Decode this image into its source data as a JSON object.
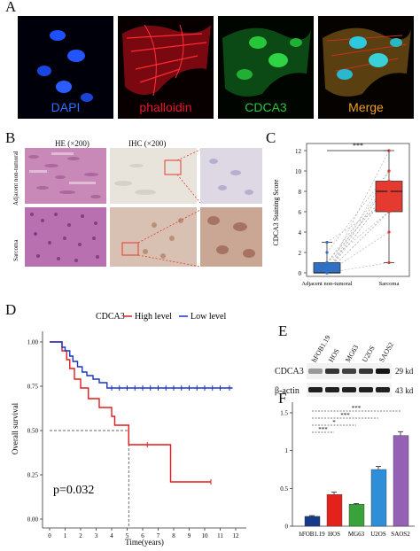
{
  "panel_labels": {
    "a": "A",
    "b": "B",
    "c": "C",
    "d": "D",
    "e": "E",
    "f": "F"
  },
  "panel_a": {
    "dapi": "DAPI",
    "phalloidin": "phalloidin",
    "cdca3": "CDCA3",
    "merge": "Merge",
    "colors": {
      "dapi": "#2e6fff",
      "phalloidin": "#e8142a",
      "cdca3": "#27c63a",
      "merge": "#f0a020"
    }
  },
  "panel_b": {
    "he": "HE (×200)",
    "ihc": "IHC (×200)",
    "row_top": "Adjacent non-tumoral",
    "row_bottom": "Sarcoma"
  },
  "panel_e": {
    "lanes": [
      "hFOB1.19",
      "HOS",
      "MG63",
      "U2OS",
      "SAOS2"
    ],
    "rows": [
      {
        "name": "CDCA3",
        "kd": "29 kd",
        "levels": [
          0.35,
          0.8,
          0.75,
          0.8,
          0.95
        ]
      },
      {
        "name": "β-actin",
        "kd": "43 kd",
        "levels": [
          0.9,
          0.9,
          0.9,
          0.9,
          0.9
        ]
      }
    ]
  },
  "chart_data": [
    {
      "type": "scatter",
      "panel": "C",
      "ylabel": "CDCA3 Staining Score",
      "categories": [
        "Adjacent non-tumoral",
        "Sarcoma"
      ],
      "ylim": [
        0,
        12
      ],
      "yticks": [
        0,
        2,
        4,
        6,
        8,
        10,
        12
      ],
      "significance": "***",
      "box": [
        {
          "name": "Adjacent non-tumoral",
          "q1": 0,
          "median": 0,
          "q3": 1,
          "whisker_low": 0,
          "whisker_high": 3,
          "color": "#2f6fc4"
        },
        {
          "name": "Sarcoma",
          "q1": 6,
          "median": 8,
          "q3": 9,
          "whisker_low": 1,
          "whisker_high": 12,
          "color": "#e53a2f"
        }
      ],
      "paired_points": [
        [
          0,
          8
        ],
        [
          0,
          9
        ],
        [
          1,
          6
        ],
        [
          0,
          12
        ],
        [
          2,
          10
        ],
        [
          0,
          4
        ],
        [
          1,
          8
        ],
        [
          0,
          6
        ],
        [
          0,
          9
        ],
        [
          3,
          7
        ],
        [
          0,
          1
        ],
        [
          1,
          8
        ],
        [
          0,
          10
        ],
        [
          0,
          6
        ],
        [
          0,
          8
        ],
        [
          1,
          9
        ]
      ]
    },
    {
      "type": "line",
      "panel": "D",
      "xlabel": "Time(years)",
      "ylabel": "Overall survival",
      "xlim": [
        0,
        12
      ],
      "ylim": [
        0,
        1
      ],
      "xticks": [
        0,
        1,
        2,
        3,
        4,
        5,
        6,
        7,
        8,
        9,
        10,
        11,
        12
      ],
      "yticks": [
        0,
        0.25,
        0.5,
        0.75,
        1
      ],
      "legend_title": "CDCA3",
      "pvalue": "p=0.032",
      "median_survival_x": 5.1,
      "series": [
        {
          "name": "High level",
          "color": "#e41a1c",
          "steps": [
            [
              0,
              1
            ],
            [
              0.8,
              0.95
            ],
            [
              1.1,
              0.9
            ],
            [
              1.3,
              0.85
            ],
            [
              1.6,
              0.79
            ],
            [
              2.0,
              0.74
            ],
            [
              2.5,
              0.68
            ],
            [
              3.2,
              0.63
            ],
            [
              4.0,
              0.58
            ],
            [
              4.2,
              0.53
            ],
            [
              5.1,
              0.42
            ],
            [
              7.8,
              0.21
            ],
            [
              10.4,
              0.21
            ]
          ],
          "censors": [
            [
              6.3,
              0.42
            ],
            [
              10.4,
              0.21
            ]
          ]
        },
        {
          "name": "Low level",
          "color": "#1a33c9",
          "steps": [
            [
              0,
              1
            ],
            [
              0.8,
              0.97
            ],
            [
              1.0,
              0.95
            ],
            [
              1.3,
              0.92
            ],
            [
              1.5,
              0.89
            ],
            [
              1.8,
              0.86
            ],
            [
              2.1,
              0.83
            ],
            [
              2.4,
              0.81
            ],
            [
              2.8,
              0.79
            ],
            [
              3.2,
              0.77
            ],
            [
              3.7,
              0.74
            ],
            [
              11.8,
              0.74
            ]
          ],
          "censors": [
            [
              4,
              0.74
            ],
            [
              4.5,
              0.74
            ],
            [
              5,
              0.74
            ],
            [
              5.5,
              0.74
            ],
            [
              6,
              0.74
            ],
            [
              6.5,
              0.74
            ],
            [
              7,
              0.74
            ],
            [
              7.5,
              0.74
            ],
            [
              8,
              0.74
            ],
            [
              8.5,
              0.74
            ],
            [
              9,
              0.74
            ],
            [
              9.5,
              0.74
            ],
            [
              10,
              0.74
            ],
            [
              10.5,
              0.74
            ],
            [
              11,
              0.74
            ],
            [
              11.6,
              0.74
            ]
          ]
        }
      ]
    },
    {
      "type": "bar",
      "panel": "F",
      "categories": [
        "hFOB1.19",
        "HOS",
        "MG63",
        "U2OS",
        "SAOS2"
      ],
      "values": [
        0.13,
        0.42,
        0.29,
        0.75,
        1.2
      ],
      "errors": [
        0.01,
        0.03,
        0.01,
        0.04,
        0.05
      ],
      "colors": [
        "#17398a",
        "#e3221c",
        "#3aa23a",
        "#2e8fd8",
        "#9461b5"
      ],
      "ylim": [
        0,
        1.5
      ],
      "yticks": [
        0,
        0.5,
        1,
        1.5
      ],
      "significance": [
        "***",
        "*",
        "***",
        "***"
      ]
    }
  ]
}
